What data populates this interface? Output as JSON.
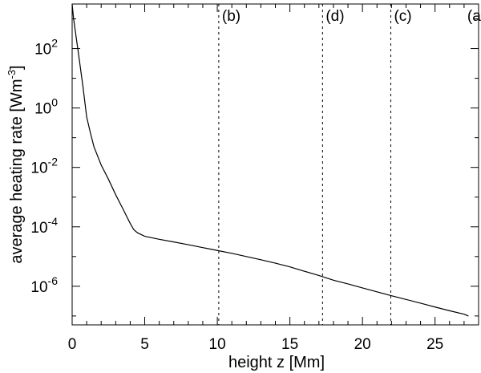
{
  "chart_data": {
    "type": "line",
    "xlabel": "height z [Mm]",
    "ylabel": "average heating rate [Wm",
    "ylabel_sup": "-3",
    "ylabel_end": "]",
    "xlim": [
      0,
      28
    ],
    "ylim_log10": [
      -7.3,
      3.5
    ],
    "y_scale": "log",
    "x_ticks": [
      0,
      5,
      10,
      15,
      20,
      25
    ],
    "x_tick_labels": [
      "0",
      "5",
      "10",
      "15",
      "20",
      "25"
    ],
    "y_ticks_exponents": [
      2,
      0,
      -2,
      -4,
      -6
    ],
    "y_tick_labels": [
      {
        "base": "10",
        "exp": "2"
      },
      {
        "base": "10",
        "exp": "0"
      },
      {
        "base": "10",
        "exp": "-2"
      },
      {
        "base": "10",
        "exp": "-4"
      },
      {
        "base": "10",
        "exp": "-6"
      }
    ],
    "markers": [
      {
        "label": "(b)",
        "x": 10.1
      },
      {
        "label": "(d)",
        "x": 17.25
      },
      {
        "label": "(c)",
        "x": 21.95
      },
      {
        "label": "(a)",
        "x": 27.0
      }
    ],
    "series": [
      {
        "x": [
          0,
          0.1,
          0.25,
          0.5,
          0.75,
          1.0,
          1.25,
          1.5,
          2.0,
          2.5,
          3.0,
          3.5,
          4.0,
          4.25,
          4.5,
          5.0,
          6.0,
          7.0,
          8.0,
          9.0,
          10.0,
          11.0,
          12.0,
          13.0,
          14.0,
          15.0,
          16.0,
          17.0,
          18.0,
          19.0,
          20.0,
          21.0,
          22.0,
          23.0,
          24.0,
          25.0,
          26.0,
          27.0,
          27.3
        ],
        "y": [
          3500,
          1000,
          300,
          40,
          5,
          0.5,
          0.15,
          0.05,
          0.012,
          0.004,
          0.0012,
          0.0004,
          0.00013,
          8e-05,
          6.3e-05,
          4.8e-05,
          3.8e-05,
          3.1e-05,
          2.5e-05,
          2e-05,
          1.6e-05,
          1.28e-05,
          1e-05,
          7.8e-06,
          6e-06,
          4.5e-06,
          3.2e-06,
          2.3e-06,
          1.6e-06,
          1.2e-06,
          8.8e-07,
          6.5e-07,
          4.8e-07,
          3.6e-07,
          2.7e-07,
          2e-07,
          1.5e-07,
          1.15e-07,
          1e-07
        ]
      }
    ]
  }
}
